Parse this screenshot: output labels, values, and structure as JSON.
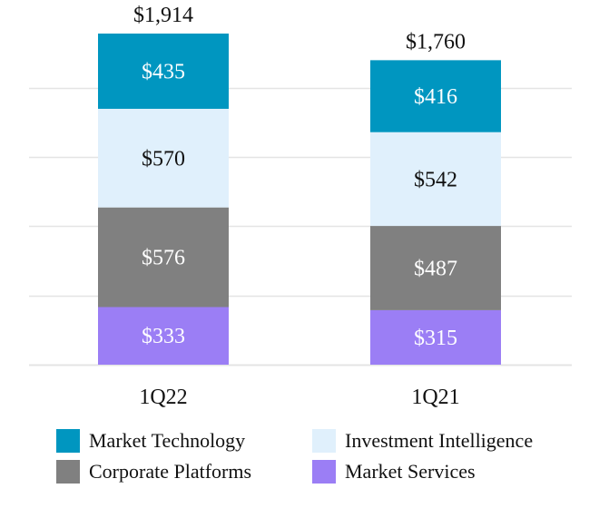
{
  "chart_data": {
    "type": "bar",
    "stacked": true,
    "categories": [
      "1Q22",
      "1Q21"
    ],
    "series": [
      {
        "name": "Market Services",
        "values": [
          333,
          315
        ],
        "labels": [
          "$333",
          "$315"
        ],
        "color": "#9b7ef5",
        "label_color": "#ffffff"
      },
      {
        "name": "Corporate Platforms",
        "values": [
          576,
          487
        ],
        "labels": [
          "$576",
          "$487"
        ],
        "color": "#808080",
        "label_color": "#ffffff"
      },
      {
        "name": "Investment Intelligence",
        "values": [
          570,
          542
        ],
        "labels": [
          "$570",
          "$542"
        ],
        "color": "#e0f0fc",
        "label_color": "#111111"
      },
      {
        "name": "Market Technology",
        "values": [
          435,
          416
        ],
        "labels": [
          "$435",
          "$416"
        ],
        "color": "#0096c0",
        "label_color": "#ffffff"
      }
    ],
    "totals": [
      1914,
      1760
    ],
    "total_labels": [
      "$1,914",
      "$1,760"
    ],
    "ylim": [
      0,
      2000
    ],
    "grid": true,
    "legend_position": "bottom",
    "title": "",
    "xlabel": "",
    "ylabel": ""
  },
  "legend": {
    "items": [
      {
        "label": "Market Technology",
        "color": "#0096c0"
      },
      {
        "label": "Investment Intelligence",
        "color": "#e0f0fc"
      },
      {
        "label": "Corporate Platforms",
        "color": "#808080"
      },
      {
        "label": "Market Services",
        "color": "#9b7ef5"
      }
    ]
  }
}
